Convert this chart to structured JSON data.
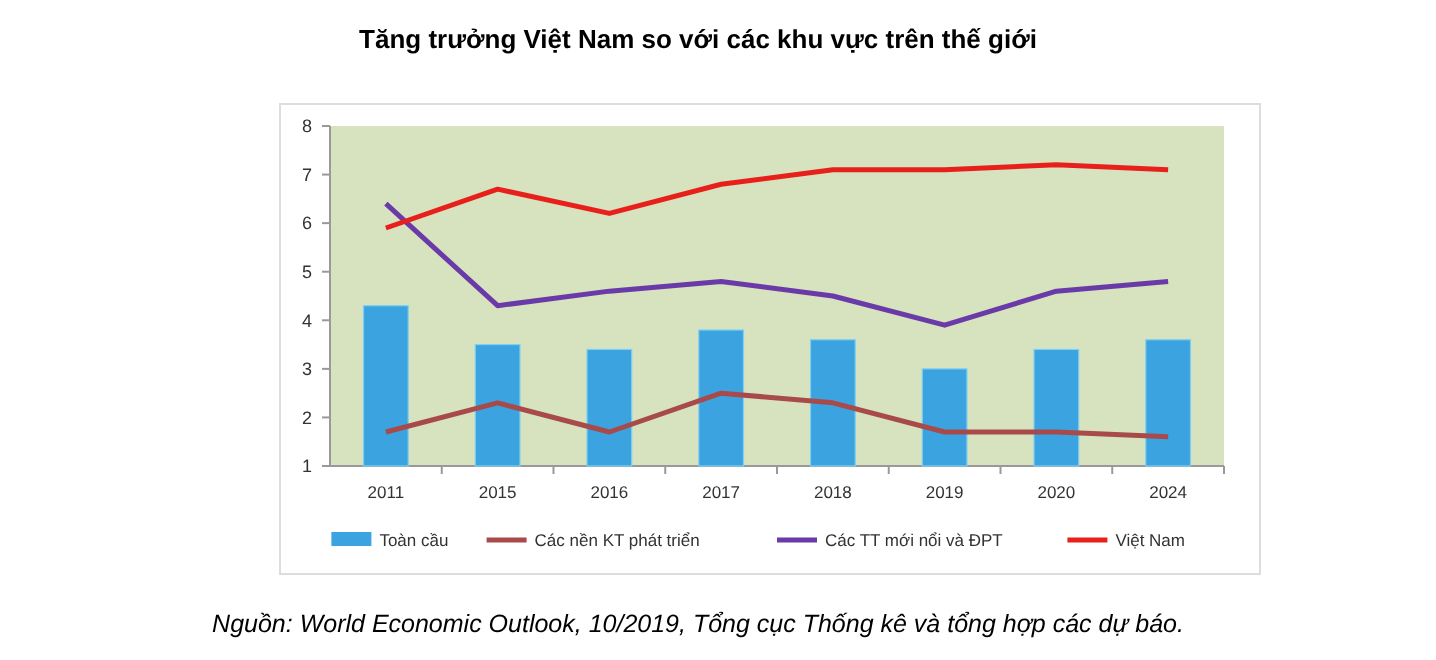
{
  "chart_data": {
    "type": "bar",
    "title": "Tăng trưởng Việt Nam so với các khu vực trên thế giới",
    "categories": [
      "2011",
      "2015",
      "2016",
      "2017",
      "2018",
      "2019",
      "2020",
      "2024"
    ],
    "series": [
      {
        "name": "Toàn cầu",
        "color": "#3ba3e0",
        "values": [
          4.3,
          3.5,
          3.4,
          3.8,
          3.6,
          3.0,
          3.4,
          3.6
        ]
      },
      {
        "name": "Các nền KT phát triển",
        "type": "line",
        "color": "#a84a4a",
        "values": [
          1.7,
          2.3,
          1.7,
          2.5,
          2.3,
          1.7,
          1.7,
          1.6
        ]
      },
      {
        "name": "Các TT mới nổi và ĐPT",
        "type": "line",
        "color": "#6a3aa8",
        "values": [
          6.4,
          4.3,
          4.6,
          4.8,
          4.5,
          3.9,
          4.6,
          4.8
        ]
      },
      {
        "name": "Việt Nam",
        "type": "line",
        "color": "#e8201c",
        "values": [
          5.9,
          6.7,
          6.2,
          6.8,
          7.1,
          7.1,
          7.2,
          7.1
        ]
      }
    ],
    "ylim": [
      1,
      8
    ],
    "yticks": [
      1,
      2,
      3,
      4,
      5,
      6,
      7,
      8
    ],
    "legend": "bottom",
    "annotations": [
      "Nguồn: World Economic Outlook, 10/2019, Tổng cục Thống kê và tổng hợp các dự báo."
    ]
  }
}
